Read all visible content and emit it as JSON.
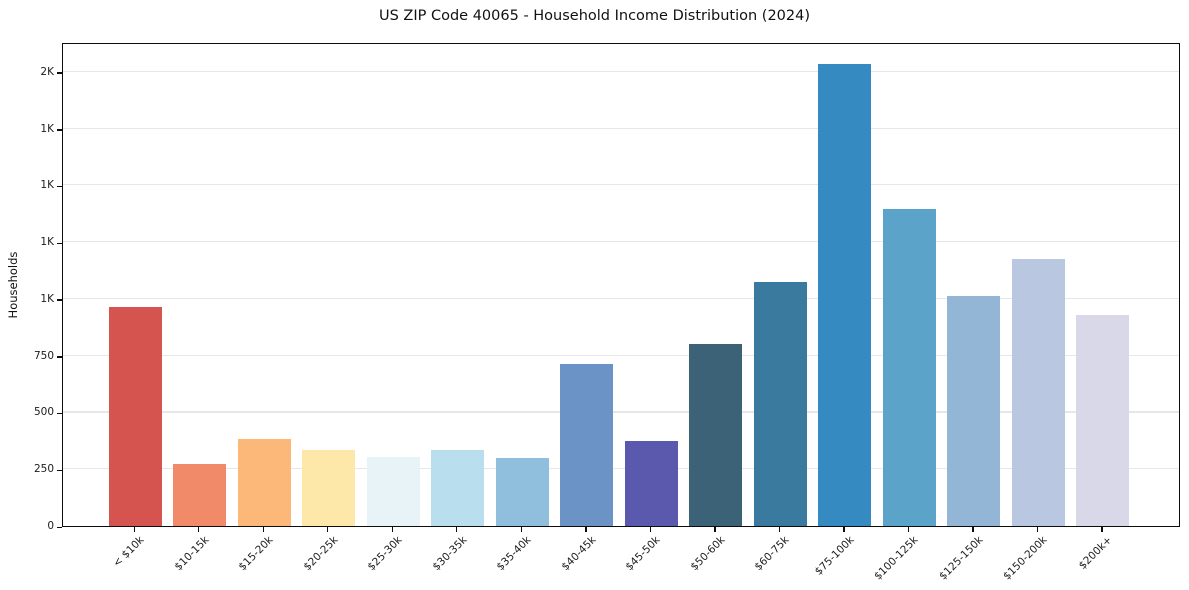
{
  "chart_data": {
    "type": "bar",
    "title": "US ZIP Code 40065 - Household Income Distribution (2024)",
    "xlabel": "",
    "ylabel": "Households",
    "categories": [
      "< $10k",
      "$10-15k",
      "$15-20k",
      "$20-25k",
      "$25-30k",
      "$30-35k",
      "$35-40k",
      "$40-45k",
      "$45-50k",
      "$50-60k",
      "$60-75k",
      "$75-100k",
      "$100-125k",
      "$125-150k",
      "$150-200k",
      "$200k+"
    ],
    "values": [
      965,
      273,
      384,
      336,
      305,
      336,
      299,
      715,
      375,
      803,
      1076,
      2035,
      1396,
      1014,
      1177,
      930
    ],
    "bar_colors": [
      "#d5544f",
      "#f08a68",
      "#fbb878",
      "#fde7a9",
      "#e7f3f7",
      "#b9dfee",
      "#90bfdd",
      "#6c93c6",
      "#5b59ae",
      "#3b6276",
      "#3a7a9e",
      "#348ac1",
      "#5ba3c9",
      "#93b6d7",
      "#b9c7e0",
      "#d8d8e8"
    ],
    "ylim": [
      0,
      2132
    ],
    "yticks": [
      {
        "value": 0,
        "label": "0"
      },
      {
        "value": 250,
        "label": "250"
      },
      {
        "value": 500,
        "label": "500"
      },
      {
        "value": 750,
        "label": "750"
      },
      {
        "value": 1000,
        "label": "1K"
      },
      {
        "value": 1250,
        "label": "1K"
      },
      {
        "value": 1500,
        "label": "1K"
      },
      {
        "value": 1750,
        "label": "1K"
      },
      {
        "value": 2000,
        "label": "2K"
      }
    ],
    "grid": "horizontal-only",
    "legend": "none"
  }
}
